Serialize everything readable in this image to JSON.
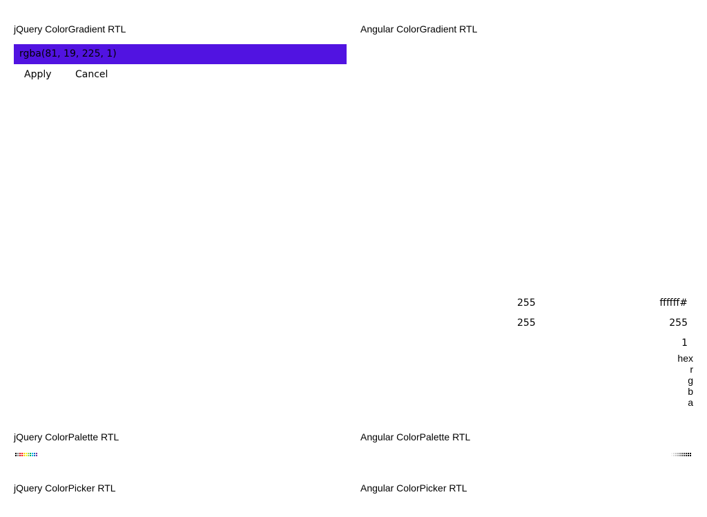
{
  "sections": {
    "jquery_gradient_title": "jQuery ColorGradient RTL",
    "angular_gradient_title": "Angular ColorGradient RTL",
    "jquery_palette_title": "jQuery ColorPalette RTL",
    "angular_palette_title": "Angular ColorPalette RTL",
    "jquery_picker_title": "jQuery ColorPicker RTL",
    "angular_picker_title": "Angular ColorPicker RTL"
  },
  "jquery_gradient": {
    "value": "rgba(81, 19, 225, 1)",
    "color": "#5113E1",
    "apply_label": "Apply",
    "cancel_label": "Cancel"
  },
  "angular_gradient": {
    "hex_value": "ffffff#",
    "r_value": "255",
    "g_value": "255",
    "b_value": "255",
    "a_value": "1",
    "labels": {
      "hex": "hex",
      "r": "r",
      "g": "g",
      "b": "b",
      "a": "a"
    }
  },
  "jquery_palette": {
    "colors": [
      "#000000",
      "#7f7f7f",
      "#c00000",
      "#ff0000",
      "#ffc000",
      "#ffff00",
      "#92d050",
      "#00b050",
      "#00b0f0",
      "#0070c0",
      "#7030a0"
    ]
  },
  "angular_palette": {
    "colors": [
      "#ffffff",
      "#f2f2f2",
      "#d9d9d9",
      "#bfbfbf",
      "#a6a6a6",
      "#7f7f7f",
      "#595959",
      "#404040",
      "#262626",
      "#0d0d0d",
      "#000000"
    ]
  }
}
